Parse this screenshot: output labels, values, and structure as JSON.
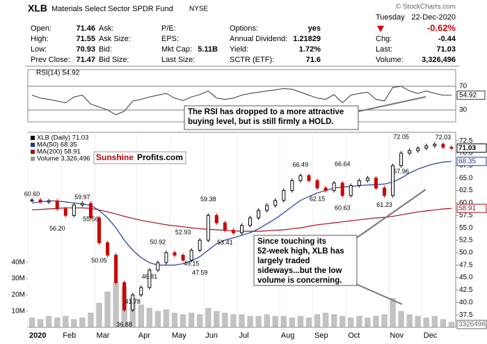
{
  "header": {
    "symbol": "XLB",
    "name": "Materials Select Sector SPDR Fund",
    "exchange": "NYSE",
    "source": "© StockCharts.com",
    "day": "Tuesday",
    "date": "22-Dec-2020",
    "change_pct": "-0.62%",
    "stats": [
      {
        "label": "Chg:",
        "value": "-0.44"
      },
      {
        "label": "Last:",
        "value": "71.03"
      },
      {
        "label": "Volume:",
        "value": "3,326,496"
      }
    ],
    "rows": [
      [
        {
          "label": "Open:",
          "value": "71.46"
        },
        {
          "label": "Ask:"
        },
        {
          "label": "P/E:"
        },
        {
          "label": "Options:",
          "value": "yes"
        }
      ],
      [
        {
          "label": "High:",
          "value": "71.55"
        },
        {
          "label": "Ask Size:"
        },
        {
          "label": "EPS:"
        },
        {
          "label": "Annual Dividend:",
          "value": "1.21829"
        }
      ],
      [
        {
          "label": "Low:",
          "value": "70.93"
        },
        {
          "label": "Bid:"
        },
        {
          "label": "Mkt Cap:",
          "value": "5.11B"
        },
        {
          "label": "Yield:",
          "value": "1.72%"
        }
      ],
      [
        {
          "label": "Prev Close:",
          "value": "71.47"
        },
        {
          "label": "Bid Size:"
        },
        {
          "label": "Last Size:"
        },
        {
          "label": "SCTR (ETF):",
          "value": "71.6"
        }
      ]
    ]
  },
  "logo": [
    "Sunshine",
    "Profits.com"
  ],
  "annotations": [
    {
      "lines": [
        "The RSI has dropped to a more attractive",
        "buying level, but is still firmly a HOLD."
      ]
    },
    {
      "lines": [
        "Since touching its",
        "52-week high, XLB has",
        "largely traded",
        "sideways...but the low",
        "volume is concerning."
      ]
    }
  ],
  "chart_data": [
    {
      "type": "line",
      "title": "RSI(14) 54.92",
      "ylim": [
        10,
        98
      ],
      "yticks": [
        30,
        70
      ],
      "last_label": "54.92",
      "series": [
        {
          "color": "#333333",
          "values": [
            55,
            50,
            48,
            45,
            42,
            52,
            55,
            40,
            35,
            30,
            22,
            28,
            45,
            48,
            52,
            55,
            58,
            50,
            46,
            52,
            56,
            62,
            50,
            48,
            50,
            55,
            58,
            60,
            62,
            64,
            66,
            65,
            60,
            55,
            50,
            48,
            56,
            42,
            55,
            58,
            60,
            48,
            45,
            68,
            70,
            62,
            58,
            62,
            58,
            55,
            54.92
          ]
        }
      ]
    },
    {
      "type": "candlestick",
      "ylim": [
        35,
        74.2
      ],
      "yticks": [
        37.5,
        {
          "value": 40,
          "label": "40.0"
        },
        42.5,
        {
          "value": 45,
          "label": "45.0"
        },
        47.5,
        {
          "value": 50,
          "label": "50.0"
        },
        52.5,
        {
          "value": 55,
          "label": "55.0"
        },
        57.5,
        {
          "value": 60,
          "label": "60.0"
        },
        62.5,
        {
          "value": 65,
          "label": "65.0"
        },
        67.5,
        {
          "value": 70,
          "label": "70.0"
        },
        72.5
      ],
      "y2lim": [
        0,
        120000000
      ],
      "y2ticks": [
        {
          "value": 10000000,
          "label": "10M"
        },
        {
          "value": 20000000,
          "label": "20M"
        },
        {
          "value": 30000000,
          "label": "30M"
        },
        {
          "value": 40000000,
          "label": "40M"
        }
      ],
      "months": [
        "2020",
        "Feb",
        "Mar",
        "Apr",
        "May",
        "Jun",
        "Jul",
        "Aug",
        "Sep",
        "Oct",
        "Nov",
        "Dec"
      ],
      "series": [
        {
          "name": "XLB (Daily) 71.03",
          "color": "#000000",
          "down_color": "#cc0000",
          "last_label": "71.03",
          "values": [
            60.6,
            60.2,
            60.4,
            58.8,
            57.5,
            59.6,
            59.9,
            57.0,
            52.0,
            49.5,
            44.0,
            38.5,
            41.5,
            43.0,
            46.5,
            48.0,
            50.0,
            49.5,
            48.5,
            50.5,
            52.5,
            57.5,
            56.0,
            54.5,
            54.0,
            55.5,
            57.0,
            58.5,
            59.5,
            60.5,
            62.5,
            64.5,
            65.5,
            64.5,
            63.0,
            62.5,
            64.0,
            61.5,
            63.5,
            64.5,
            65.0,
            63.0,
            61.5,
            67.5,
            70.0,
            70.5,
            71.0,
            71.5,
            71.8,
            71.2,
            71.03
          ]
        },
        {
          "name": "MA(50) 68.35",
          "color": "#1f3a9a",
          "last_label": "68.35",
          "values": [
            60.0,
            60.2,
            60.4,
            60.4,
            60.2,
            60.0,
            59.8,
            59.5,
            58.5,
            57.0,
            55.0,
            52.5,
            50.5,
            49.0,
            48.0,
            47.5,
            47.5,
            47.5,
            47.8,
            48.3,
            49.2,
            50.5,
            51.8,
            52.5,
            53.0,
            53.5,
            54.0,
            54.8,
            55.8,
            56.8,
            58.0,
            59.3,
            60.5,
            61.3,
            62.0,
            62.5,
            63.0,
            63.2,
            63.3,
            63.5,
            63.6,
            63.7,
            63.8,
            64.2,
            65.0,
            66.0,
            66.8,
            67.4,
            67.9,
            68.2,
            68.35
          ]
        },
        {
          "name": "MA(200) 58.91",
          "color": "#a01020",
          "last_label": "58.91",
          "values": [
            58.6,
            58.7,
            58.8,
            58.9,
            59.0,
            59.0,
            59.0,
            58.9,
            58.6,
            58.2,
            57.8,
            57.3,
            56.9,
            56.5,
            56.2,
            55.9,
            55.6,
            55.4,
            55.2,
            55.0,
            54.8,
            54.7,
            54.6,
            54.5,
            54.4,
            54.3,
            54.3,
            54.3,
            54.4,
            54.5,
            54.6,
            54.8,
            55.0,
            55.3,
            55.6,
            55.8,
            56.0,
            56.2,
            56.4,
            56.6,
            56.8,
            57.0,
            57.1,
            57.3,
            57.6,
            57.9,
            58.2,
            58.4,
            58.6,
            58.8,
            58.91
          ]
        },
        {
          "name": "Volume 3,326,496",
          "color": "#999999",
          "axis": "y2",
          "last_label": "3326496",
          "values": [
            6000000,
            5000000,
            7000000,
            6000000,
            7000000,
            5000000,
            6000000,
            9000000,
            15000000,
            22000000,
            28000000,
            25000000,
            18000000,
            14000000,
            12000000,
            10000000,
            11000000,
            9000000,
            8000000,
            9000000,
            8000000,
            12000000,
            10000000,
            9000000,
            8000000,
            8000000,
            7000000,
            7000000,
            8000000,
            7000000,
            7000000,
            6000000,
            7000000,
            6000000,
            8000000,
            9000000,
            8000000,
            7000000,
            6000000,
            7000000,
            6000000,
            7000000,
            8000000,
            18000000,
            10000000,
            8000000,
            7000000,
            6000000,
            7000000,
            5000000,
            3326496
          ]
        }
      ],
      "price_labels": [
        {
          "value": 60.6,
          "label": "60.60"
        },
        {
          "value": 56.2,
          "label": "56.20"
        },
        {
          "value": 59.97,
          "label": "59.97"
        },
        {
          "value": 55.56,
          "label": "55.56"
        },
        {
          "value": 50.05,
          "label": "50.05"
        },
        {
          "value": 36.88,
          "label": "36.88"
        },
        {
          "value": 41.78,
          "label": "41.78"
        },
        {
          "value": 46.81,
          "label": "46.81"
        },
        {
          "value": 50.92,
          "label": "50.92"
        },
        {
          "value": 52.93,
          "label": "52.93"
        },
        {
          "value": 49.15,
          "label": "49.15"
        },
        {
          "value": 47.59,
          "label": "47.59"
        },
        {
          "value": 59.38,
          "label": "59.38"
        },
        {
          "value": 53.41,
          "label": "53.41"
        },
        {
          "value": 66.49,
          "label": "66.49"
        },
        {
          "value": 62.15,
          "label": "62.15"
        },
        {
          "value": 66.64,
          "label": "66.64"
        },
        {
          "value": 60.63,
          "label": "60.63"
        },
        {
          "value": 61.23,
          "label": "61.23"
        },
        {
          "value": 67.96,
          "label": "67.96"
        },
        {
          "value": 72.05,
          "label": "72.05"
        },
        {
          "value": 72.03,
          "label": "72.03"
        }
      ]
    }
  ]
}
